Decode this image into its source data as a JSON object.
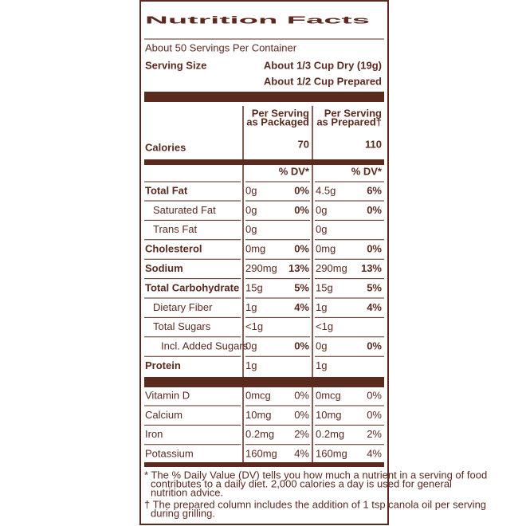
{
  "header": {
    "title": "Nutrition Facts",
    "servings_per_container": "About 50 Servings Per Container",
    "serving_size_label": "Serving Size",
    "serving_size_values": [
      "About 1/3 Cup Dry (19g)",
      "About 1/2 Cup Prepared"
    ]
  },
  "calories_label": "Calories",
  "columns": [
    {
      "heading": [
        "Per Serving",
        "as Packaged"
      ],
      "calories": "70",
      "dv_header": "% DV*"
    },
    {
      "heading": [
        "Per Serving",
        "as Prepared†"
      ],
      "calories": "110",
      "dv_header": "% DV*"
    }
  ],
  "nutrients": [
    {
      "name": "Total Fat",
      "bold": true,
      "indent": 0,
      "amounts": [
        "0g",
        "4.5g"
      ],
      "dv": [
        "0%",
        "6%"
      ]
    },
    {
      "name": "Saturated Fat",
      "bold": false,
      "indent": 1,
      "amounts": [
        "0g",
        "0g"
      ],
      "dv": [
        "0%",
        "0%"
      ]
    },
    {
      "name": "Trans Fat",
      "bold": false,
      "indent": 1,
      "amounts": [
        "0g",
        "0g"
      ],
      "dv": [
        null,
        null
      ]
    },
    {
      "name": "Cholesterol",
      "bold": true,
      "indent": 0,
      "amounts": [
        "0mg",
        "0mg"
      ],
      "dv": [
        "0%",
        "0%"
      ]
    },
    {
      "name": "Sodium",
      "bold": true,
      "indent": 0,
      "amounts": [
        "290mg",
        "290mg"
      ],
      "dv": [
        "13%",
        "13%"
      ]
    },
    {
      "name": "Total Carbohydrate",
      "bold": true,
      "indent": 0,
      "amounts": [
        "15g",
        "15g"
      ],
      "dv": [
        "5%",
        "5%"
      ]
    },
    {
      "name": "Dietary Fiber",
      "bold": false,
      "indent": 1,
      "amounts": [
        "1g",
        "1g"
      ],
      "dv": [
        "4%",
        "4%"
      ]
    },
    {
      "name": "Total Sugars",
      "bold": false,
      "indent": 1,
      "amounts": [
        "<1g",
        "<1g"
      ],
      "dv": [
        null,
        null
      ]
    },
    {
      "name": "Incl. Added Sugars",
      "bold": false,
      "indent": 2,
      "amounts": [
        "0g",
        "0g"
      ],
      "dv": [
        "0%",
        "0%"
      ]
    },
    {
      "name": "Protein",
      "bold": true,
      "indent": 0,
      "amounts": [
        "1g",
        "1g"
      ],
      "dv": [
        null,
        null
      ]
    }
  ],
  "vitamins": [
    {
      "name": "Vitamin D",
      "amounts": [
        "0mcg",
        "0mcg"
      ],
      "dv": [
        "0%",
        "0%"
      ]
    },
    {
      "name": "Calcium",
      "amounts": [
        "10mg",
        "10mg"
      ],
      "dv": [
        "0%",
        "0%"
      ]
    },
    {
      "name": "Iron",
      "amounts": [
        "0.2mg",
        "0.2mg"
      ],
      "dv": [
        "2%",
        "2%"
      ]
    },
    {
      "name": "Potassium",
      "amounts": [
        "160mg",
        "160mg"
      ],
      "dv": [
        "4%",
        "4%"
      ]
    }
  ],
  "footnotes": [
    [
      "* The % Daily Value (DV) tells you how much a nutrient in a serving of food",
      "contributes to a daily diet. 2,000 calories a day is used for general",
      "nutrition advice."
    ],
    [
      "† The prepared column includes the addition of 1 tsp canola oil per serving",
      "during grilling."
    ]
  ]
}
